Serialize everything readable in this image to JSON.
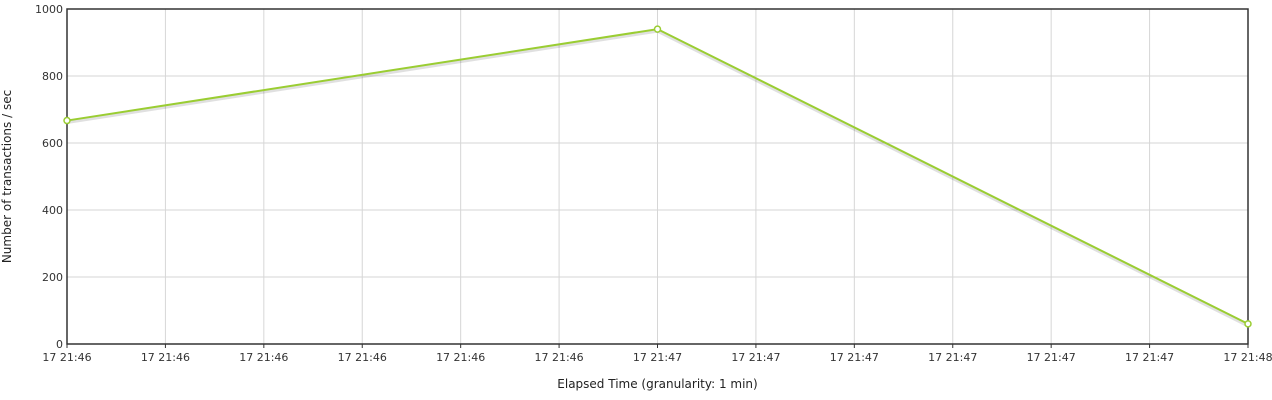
{
  "chart_data": {
    "type": "line",
    "xlabel": "Elapsed Time (granularity: 1 min)",
    "ylabel": "Number of transactions / sec",
    "ylim": [
      0,
      1000
    ],
    "yticks": [
      0,
      200,
      400,
      600,
      800,
      1000
    ],
    "xlim": [
      0,
      12
    ],
    "xtick_labels": [
      "17 21:46",
      "17 21:46",
      "17 21:46",
      "17 21:46",
      "17 21:46",
      "17 21:46",
      "17 21:47",
      "17 21:47",
      "17 21:47",
      "17 21:47",
      "17 21:47",
      "17 21:47",
      "17 21:48"
    ],
    "grid": true,
    "legend": "none",
    "series": [
      {
        "color": "#9acd32",
        "points": [
          {
            "x": 0,
            "y": 667
          },
          {
            "x": 6,
            "y": 940
          },
          {
            "x": 12,
            "y": 60
          }
        ]
      }
    ]
  }
}
